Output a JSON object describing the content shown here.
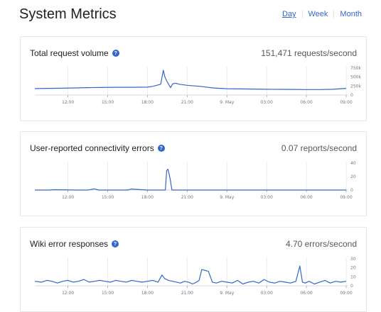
{
  "page": {
    "title": "System Metrics",
    "ranges": [
      {
        "label": "Day",
        "active": true
      },
      {
        "label": "Week",
        "active": false
      },
      {
        "label": "Month",
        "active": false
      }
    ]
  },
  "panels": [
    {
      "title": "Total request volume",
      "value": "151,471 requests/second",
      "icon": "info-icon"
    },
    {
      "title": "User-reported connectivity errors",
      "value": "0.07 reports/second",
      "icon": "info-icon"
    },
    {
      "title": "Wiki error responses",
      "value": "4.70 errors/second",
      "icon": "info-icon"
    }
  ],
  "colors": {
    "accent": "#3366cc",
    "line": "#3366cc",
    "grid": "#eaecf0"
  },
  "chart_data": [
    {
      "type": "line",
      "x_tick_labels": [
        "12:00",
        "15:00",
        "18:00",
        "21:00",
        "9. May",
        "03:00",
        "06:00",
        "09:00"
      ],
      "y_tick_labels": [
        "750k",
        "500k",
        "250k",
        "0"
      ],
      "ylim": [
        0,
        750000
      ],
      "x_hours": [
        9.5,
        10.5,
        11.5,
        12.5,
        13.5,
        14.5,
        15.5,
        16.5,
        17.5,
        18.0,
        18.4,
        18.7,
        19.0,
        19.2,
        19.3,
        19.45,
        19.6,
        19.75,
        19.9,
        20.1,
        20.4,
        21.0,
        22.0,
        23.0,
        24.0,
        25.0,
        26.0,
        27.0,
        28.0,
        29.0,
        30.0,
        31.0,
        32.0,
        33.0
      ],
      "values": [
        180000,
        185000,
        190000,
        198000,
        205000,
        210000,
        215000,
        215000,
        218000,
        220000,
        240000,
        270000,
        300000,
        690000,
        520000,
        390000,
        300000,
        205000,
        310000,
        330000,
        300000,
        270000,
        240000,
        195000,
        175000,
        170000,
        165000,
        160000,
        158000,
        155000,
        152000,
        152000,
        160000,
        185000
      ]
    },
    {
      "type": "line",
      "x_tick_labels": [
        "12:00",
        "15:00",
        "18:00",
        "21:00",
        "9. May",
        "03:00",
        "06:00",
        "09:00"
      ],
      "y_tick_labels": [
        "40",
        "20",
        "0"
      ],
      "ylim": [
        0,
        40
      ],
      "x_hours": [
        9.5,
        10.5,
        11.0,
        12.5,
        13.5,
        14.0,
        14.3,
        15.5,
        16.5,
        16.8,
        18.0,
        19.0,
        19.35,
        19.45,
        19.55,
        19.7,
        19.85,
        20.0,
        22.0,
        24.0,
        26.0,
        28.0,
        30.0,
        33.0
      ],
      "values": [
        0,
        0,
        0.5,
        0,
        0,
        1.8,
        0,
        0,
        0,
        1.5,
        0,
        0,
        0,
        29,
        31,
        18,
        0,
        0,
        0,
        0,
        0,
        0,
        0,
        0
      ]
    },
    {
      "type": "line",
      "x_tick_labels": [
        "12:00",
        "15:00",
        "18:00",
        "21:00",
        "9. May",
        "03:00",
        "06:00",
        "09:00"
      ],
      "y_tick_labels": [
        "30",
        "20",
        "10",
        "0"
      ],
      "ylim": [
        0,
        30
      ],
      "x_hours": [
        9.5,
        10.0,
        10.4,
        10.8,
        11.2,
        11.6,
        12.0,
        12.4,
        12.8,
        13.2,
        13.6,
        14.0,
        14.4,
        14.8,
        15.2,
        15.6,
        16.0,
        16.4,
        16.8,
        17.2,
        17.6,
        18.0,
        18.4,
        18.8,
        19.1,
        19.3,
        19.6,
        19.9,
        20.2,
        20.5,
        20.8,
        21.1,
        21.4,
        21.7,
        21.9,
        22.1,
        22.4,
        22.6,
        22.9,
        23.2,
        23.6,
        24.0,
        24.4,
        24.8,
        25.2,
        25.6,
        26.0,
        26.4,
        26.8,
        27.2,
        27.6,
        28.0,
        28.4,
        28.8,
        29.2,
        29.5,
        29.7,
        29.9,
        30.2,
        30.6,
        31.0,
        31.4,
        31.8,
        32.2,
        32.6,
        33.0
      ],
      "values": [
        5,
        4,
        6,
        5,
        3,
        5,
        6,
        4,
        5,
        7,
        4,
        5,
        6,
        5,
        4,
        6,
        5,
        4,
        6,
        5,
        4,
        5,
        6,
        4,
        12,
        8,
        6,
        5,
        4,
        3,
        5,
        4,
        2,
        4,
        6,
        18,
        17,
        16,
        4,
        3,
        5,
        4,
        3,
        6,
        2,
        4,
        5,
        3,
        7,
        4,
        3,
        5,
        4,
        3,
        5,
        22,
        4,
        3,
        5,
        2,
        4,
        6,
        3,
        5,
        4,
        5
      ]
    }
  ]
}
